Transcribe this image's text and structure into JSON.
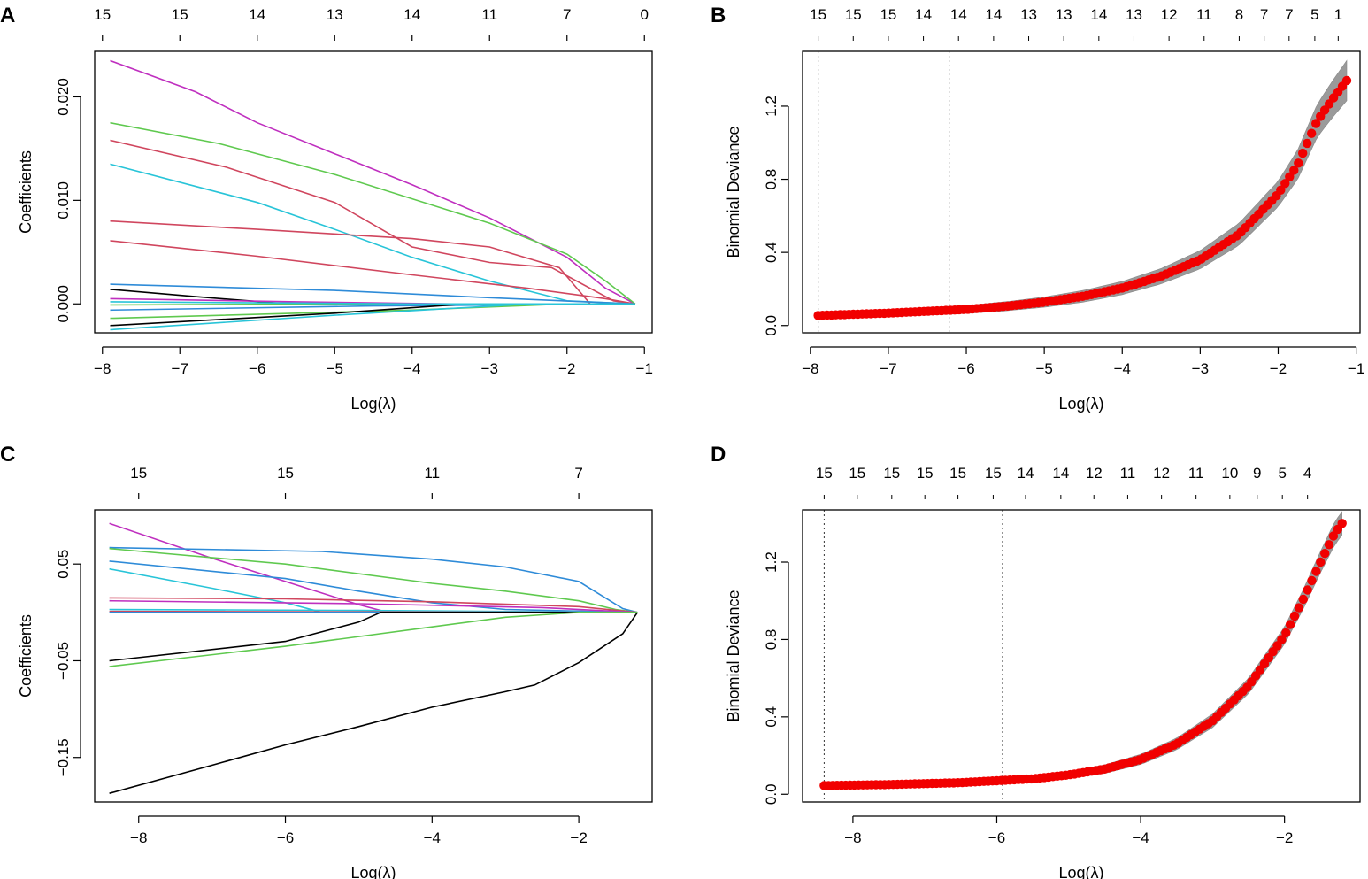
{
  "chart_data": [
    {
      "id": "A",
      "type": "line",
      "panel_label": "A",
      "xlabel": "Log(λ)",
      "ylabel": "Coefficients",
      "xlim": [
        -8.1,
        -0.9
      ],
      "ylim": [
        -0.0028,
        0.0244
      ],
      "xticks": [
        -8,
        -7,
        -6,
        -5,
        -4,
        -3,
        -2,
        -1
      ],
      "xtick_labels": [
        "−8",
        "−7",
        "−6",
        "−5",
        "−4",
        "−3",
        "−2",
        "−1"
      ],
      "yticks": [
        0.0,
        0.01,
        0.02
      ],
      "ytick_labels": [
        "0.000",
        "0.010",
        "0.020"
      ],
      "top_axis": {
        "ticks": [
          -8,
          -7,
          -6,
          -5,
          -4,
          -3,
          -2,
          -1
        ],
        "labels": [
          "15",
          "15",
          "14",
          "13",
          "14",
          "11",
          "7",
          "0"
        ]
      },
      "series": [
        {
          "color": "#BF2FBF",
          "x": [
            -7.9,
            -6.8,
            -6.0,
            -5.0,
            -4.0,
            -3.0,
            -2.0,
            -1.5,
            -1.12
          ],
          "y": [
            0.0235,
            0.0205,
            0.0175,
            0.0145,
            0.0115,
            0.0083,
            0.0045,
            0.0015,
            0.0
          ]
        },
        {
          "color": "#5FC94F",
          "x": [
            -7.9,
            -6.5,
            -5.0,
            -3.0,
            -2.0,
            -1.5,
            -1.12
          ],
          "y": [
            0.0175,
            0.0155,
            0.0125,
            0.0078,
            0.0048,
            0.0022,
            0.0
          ]
        },
        {
          "color": "#D0465E",
          "x": [
            -7.9,
            -6.4,
            -5.0,
            -4.0,
            -3.0,
            -2.2,
            -1.4,
            -1.12
          ],
          "y": [
            0.0158,
            0.0132,
            0.0098,
            0.0055,
            0.004,
            0.0035,
            0.0003,
            0.0
          ]
        },
        {
          "color": "#28C4D8",
          "x": [
            -7.9,
            -6.0,
            -5.0,
            -4.0,
            -3.0,
            -2.0,
            -1.12
          ],
          "y": [
            0.0135,
            0.0098,
            0.0072,
            0.0045,
            0.0022,
            0.0003,
            0.0
          ]
        },
        {
          "color": "#D0465E",
          "x": [
            -7.9,
            -6.0,
            -4.0,
            -3.0,
            -2.1,
            -1.7,
            -1.12
          ],
          "y": [
            0.008,
            0.0072,
            0.0063,
            0.0055,
            0.0035,
            0.0,
            0.0
          ]
        },
        {
          "color": "#D0465E",
          "x": [
            -7.9,
            -6.0,
            -4.0,
            -2.5,
            -1.5,
            -1.12
          ],
          "y": [
            0.0061,
            0.0046,
            0.0028,
            0.0015,
            0.0005,
            0.0
          ]
        },
        {
          "color": "#2E8BD8",
          "x": [
            -7.9,
            -5.0,
            -3.0,
            -1.12
          ],
          "y": [
            0.0019,
            0.0013,
            0.0006,
            0.0
          ]
        },
        {
          "color": "#000000",
          "x": [
            -7.9,
            -6.8,
            -5.6,
            -1.12
          ],
          "y": [
            0.0014,
            0.0007,
            0.0,
            0.0
          ]
        },
        {
          "color": "#BF2FBF",
          "x": [
            -7.9,
            -5.5,
            -3.5,
            -1.12
          ],
          "y": [
            0.0005,
            0.0002,
            0.0,
            0.0
          ]
        },
        {
          "color": "#5FC94F",
          "x": [
            -7.9,
            -4.0,
            -1.12
          ],
          "y": [
            -0.0001,
            0.0,
            0.0
          ]
        },
        {
          "color": "#2E8BD8",
          "x": [
            -7.9,
            -4.5,
            -1.12
          ],
          "y": [
            -0.0006,
            -0.0002,
            0.0
          ]
        },
        {
          "color": "#5FC94F",
          "x": [
            -7.9,
            -4.0,
            -2.0,
            -1.12
          ],
          "y": [
            -0.0014,
            -0.0006,
            0.0,
            0.0
          ]
        },
        {
          "color": "#000000",
          "x": [
            -7.9,
            -5.0,
            -3.3,
            -1.12
          ],
          "y": [
            -0.0021,
            -0.0009,
            0.0,
            0.0
          ]
        },
        {
          "color": "#28C4D8",
          "x": [
            -7.9,
            -5.0,
            -2.5,
            -1.12
          ],
          "y": [
            -0.0025,
            -0.0011,
            0.0,
            0.0
          ]
        },
        {
          "color": "#28C4D8",
          "x": [
            -7.9,
            -4.0,
            -1.12
          ],
          "y": [
            0.0002,
            0.0,
            0.0
          ]
        }
      ]
    },
    {
      "id": "B",
      "type": "scatter",
      "panel_label": "B",
      "xlabel": "Log(λ)",
      "ylabel": "Binomial Deviance",
      "xlim": [
        -8.1,
        -0.95
      ],
      "ylim": [
        -0.04,
        1.5
      ],
      "xticks": [
        -8,
        -7,
        -6,
        -5,
        -4,
        -3,
        -2,
        -1
      ],
      "xtick_labels": [
        "−8",
        "−7",
        "−6",
        "−5",
        "−4",
        "−3",
        "−2",
        "−1"
      ],
      "yticks": [
        0.0,
        0.4,
        0.8,
        1.2
      ],
      "ytick_labels": [
        "0.0",
        "0.4",
        "0.8",
        "1.2"
      ],
      "vlines": [
        -7.9,
        -6.22
      ],
      "top_axis": {
        "ticks": [
          -7.9,
          -7.45,
          -7.0,
          -6.55,
          -6.1,
          -5.65,
          -5.2,
          -4.75,
          -4.3,
          -3.85,
          -3.4,
          -2.95,
          -2.5,
          -2.18,
          -1.86,
          -1.53,
          -1.23
        ],
        "labels": [
          "15",
          "15",
          "15",
          "14",
          "14",
          "14",
          "13",
          "13",
          "14",
          "13",
          "12",
          "11",
          "8",
          "7",
          "7",
          "5",
          "1"
        ]
      },
      "x": [
        -7.9,
        -7.0,
        -6.0,
        -5.5,
        -5.0,
        -4.5,
        -4.0,
        -3.5,
        -3.0,
        -2.5,
        -2.0,
        -1.75,
        -1.5,
        -1.3,
        -1.12
      ],
      "y": [
        0.055,
        0.068,
        0.088,
        0.105,
        0.128,
        0.16,
        0.205,
        0.27,
        0.36,
        0.5,
        0.72,
        0.88,
        1.12,
        1.24,
        1.34
      ],
      "band": [
        0.015,
        0.02,
        0.022,
        0.025,
        0.028,
        0.032,
        0.036,
        0.042,
        0.05,
        0.06,
        0.07,
        0.08,
        0.09,
        0.1,
        0.11
      ]
    },
    {
      "id": "C",
      "type": "line",
      "panel_label": "C",
      "xlabel": "Log(λ)",
      "ylabel": "Coefficients",
      "xlim": [
        -8.6,
        -1.0
      ],
      "ylim": [
        -0.196,
        0.106
      ],
      "xticks": [
        -8,
        -6,
        -4,
        -2
      ],
      "xtick_labels": [
        "−8",
        "−6",
        "−4",
        "−2"
      ],
      "yticks": [
        -0.15,
        -0.05,
        0.05
      ],
      "ytick_labels": [
        "−0.15",
        "−0.05",
        "0.05"
      ],
      "top_axis": {
        "ticks": [
          -8,
          -6,
          -4,
          -2
        ],
        "labels": [
          "15",
          "15",
          "11",
          "7"
        ]
      },
      "series": [
        {
          "color": "#000000",
          "x": [
            -8.4,
            -7.0,
            -6.0,
            -5.0,
            -4.0,
            -3.0,
            -2.6,
            -2.0,
            -1.4,
            -1.2
          ],
          "y": [
            -0.187,
            -0.158,
            -0.137,
            -0.118,
            -0.098,
            -0.082,
            -0.075,
            -0.052,
            -0.022,
            0.0
          ]
        },
        {
          "color": "#BF2FBF",
          "x": [
            -8.4,
            -7.0,
            -6.0,
            -5.0,
            -4.6,
            -1.2
          ],
          "y": [
            0.092,
            0.056,
            0.032,
            0.008,
            0.0,
            0.0
          ]
        },
        {
          "color": "#2E8BD8",
          "x": [
            -8.4,
            -5.5,
            -4.0,
            -3.0,
            -2.0,
            -1.4,
            -1.2
          ],
          "y": [
            0.067,
            0.063,
            0.055,
            0.047,
            0.032,
            0.004,
            0.0
          ]
        },
        {
          "color": "#5FC94F",
          "x": [
            -8.4,
            -6.0,
            -4.0,
            -3.0,
            -2.0,
            -1.5,
            -1.2
          ],
          "y": [
            0.066,
            0.05,
            0.03,
            0.022,
            0.012,
            0.003,
            0.0
          ]
        },
        {
          "color": "#2E8BD8",
          "x": [
            -8.4,
            -6.0,
            -5.0,
            -4.0,
            -3.0,
            -1.2
          ],
          "y": [
            0.053,
            0.035,
            0.022,
            0.01,
            0.003,
            0.0
          ]
        },
        {
          "color": "#28C4D8",
          "x": [
            -8.4,
            -7.0,
            -6.0,
            -5.5,
            -1.2
          ],
          "y": [
            0.045,
            0.025,
            0.01,
            0.0,
            0.0
          ]
        },
        {
          "color": "#D0465E",
          "x": [
            -8.4,
            -6.0,
            -4.0,
            -2.0,
            -1.2
          ],
          "y": [
            0.015,
            0.014,
            0.011,
            0.006,
            0.0
          ]
        },
        {
          "color": "#BF2FBF",
          "x": [
            -8.4,
            -5.0,
            -2.5,
            -1.2
          ],
          "y": [
            0.012,
            0.009,
            0.005,
            0.0
          ]
        },
        {
          "color": "#28C4D8",
          "x": [
            -8.4,
            -5.0,
            -1.2
          ],
          "y": [
            0.003,
            0.002,
            0.0
          ]
        },
        {
          "color": "#D0465E",
          "x": [
            -8.4,
            -1.2
          ],
          "y": [
            0.001,
            0.0
          ]
        },
        {
          "color": "#2E8BD8",
          "x": [
            -8.4,
            -1.2
          ],
          "y": [
            0.0,
            0.0
          ]
        },
        {
          "color": "#000000",
          "x": [
            -8.4,
            -6.0,
            -5.0,
            -4.7,
            -1.2
          ],
          "y": [
            -0.05,
            -0.03,
            -0.01,
            0.0,
            0.0
          ]
        },
        {
          "color": "#5FC94F",
          "x": [
            -8.4,
            -6.0,
            -4.0,
            -3.0,
            -2.0,
            -1.2
          ],
          "y": [
            -0.056,
            -0.035,
            -0.015,
            -0.005,
            0.0,
            0.0
          ]
        }
      ]
    },
    {
      "id": "D",
      "type": "scatter",
      "panel_label": "D",
      "xlabel": "Log(λ)",
      "ylabel": "Binomial Deviance",
      "xlim": [
        -8.7,
        -0.95
      ],
      "ylim": [
        -0.04,
        1.47
      ],
      "xticks": [
        -8,
        -6,
        -4,
        -2
      ],
      "xtick_labels": [
        "−8",
        "−6",
        "−4",
        "−2"
      ],
      "yticks": [
        0.0,
        0.4,
        0.8,
        1.2
      ],
      "ytick_labels": [
        "0.0",
        "0.4",
        "0.8",
        "1.2"
      ],
      "vlines": [
        -8.4,
        -5.92
      ],
      "top_axis": {
        "ticks": [
          -8.4,
          -7.94,
          -7.46,
          -7.0,
          -6.54,
          -6.05,
          -5.6,
          -5.11,
          -4.65,
          -4.18,
          -3.71,
          -3.23,
          -2.76,
          -2.38,
          -2.03,
          -1.68
        ],
        "labels": [
          "15",
          "15",
          "15",
          "15",
          "15",
          "15",
          "14",
          "14",
          "12",
          "11",
          "12",
          "11",
          "10",
          "9",
          "5",
          "4"
        ]
      },
      "x": [
        -8.4,
        -7.5,
        -6.5,
        -5.5,
        -5.0,
        -4.5,
        -4.0,
        -3.5,
        -3.0,
        -2.5,
        -2.0,
        -1.75,
        -1.5,
        -1.3,
        -1.2
      ],
      "y": [
        0.045,
        0.05,
        0.06,
        0.08,
        0.1,
        0.13,
        0.18,
        0.26,
        0.38,
        0.56,
        0.82,
        1.0,
        1.2,
        1.35,
        1.4
      ],
      "band": [
        0.01,
        0.01,
        0.012,
        0.015,
        0.018,
        0.022,
        0.026,
        0.03,
        0.035,
        0.04,
        0.045,
        0.05,
        0.055,
        0.06,
        0.06
      ]
    }
  ]
}
